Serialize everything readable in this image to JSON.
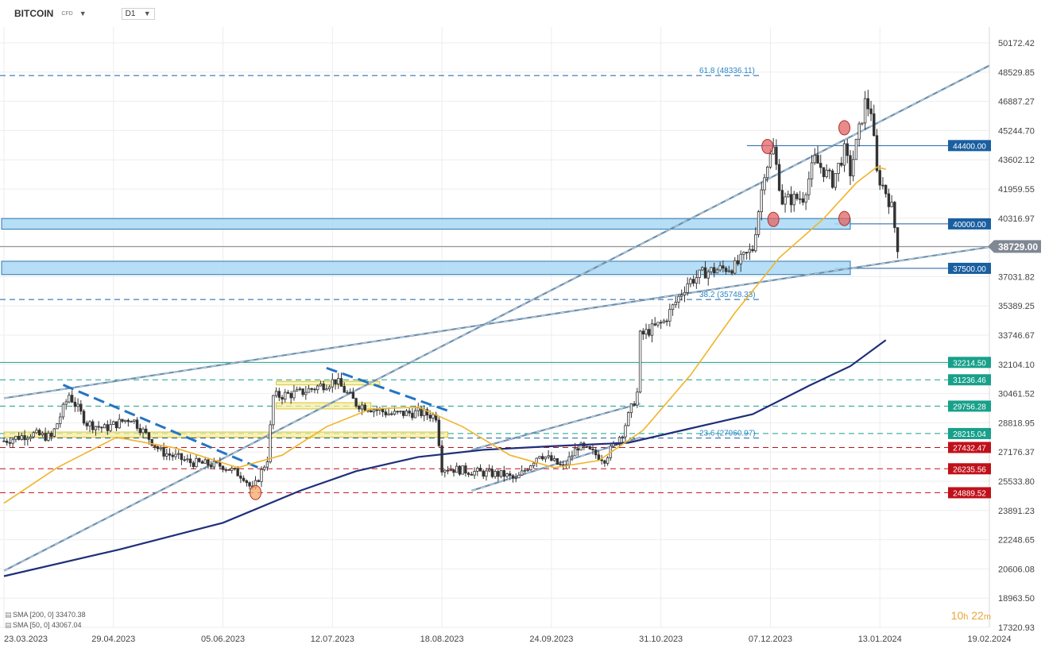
{
  "header": {
    "symbol": "BITCOIN",
    "symbol_type": "CFD",
    "timeframe": "D1"
  },
  "legend": [
    {
      "label": "SMA [200,  0]  33470.38",
      "color": "#1f2f7a"
    },
    {
      "label": "SMA [50,  0]  43067.04",
      "color": "#f0b429"
    }
  ],
  "countdown": {
    "hours": "10",
    "h": "h",
    "minutes": "22",
    "m": "m"
  },
  "chart_data": {
    "type": "candlestick",
    "instrument": "BITCOIN",
    "timeframe": "D1",
    "last_price": "38729.00",
    "y_ticks": [
      "50172.42",
      "48529.85",
      "46887.27",
      "45244.70",
      "43602.12",
      "41959.55",
      "40316.97",
      "38674.40",
      "37031.82",
      "35389.25",
      "33746.67",
      "32104.10",
      "30461.52",
      "28818.95",
      "27176.37",
      "25533.80",
      "23891.23",
      "22248.65",
      "20606.08",
      "18963.50",
      "17320.93"
    ],
    "x_ticks": [
      "23.03.2023",
      "29.04.2023",
      "05.06.2023",
      "12.07.2023",
      "18.08.2023",
      "24.09.2023",
      "31.10.2023",
      "07.12.2023",
      "13.01.2024",
      "19.02.2024"
    ],
    "x_range": [
      "2023-03-23",
      "2024-02-19"
    ],
    "y_range": [
      17320.93,
      50172.42
    ],
    "price_labels": [
      {
        "text": "44400.00",
        "value": 44400,
        "color": "#1a5fa0"
      },
      {
        "text": "40000.00",
        "value": 40000,
        "color": "#1a5fa0"
      },
      {
        "text": "37500.00",
        "value": 37500,
        "color": "#1a5fa0"
      },
      {
        "text": "32214.50",
        "value": 32214.5,
        "color": "#18a08a"
      },
      {
        "text": "31236.46",
        "value": 31236.46,
        "color": "#18a08a"
      },
      {
        "text": "29756.28",
        "value": 29756.28,
        "color": "#18a08a"
      },
      {
        "text": "28215.04",
        "value": 28215.04,
        "color": "#18a08a"
      },
      {
        "text": "27432.47",
        "value": 27432.47,
        "color": "#c0101a"
      },
      {
        "text": "26235.56",
        "value": 26235.56,
        "color": "#c0101a"
      },
      {
        "text": "24889.52",
        "value": 24889.52,
        "color": "#c0101a"
      }
    ],
    "fib_levels": [
      {
        "text": "61.8 (48336.11)",
        "value": 48336.11
      },
      {
        "text": "38.2 (35748.33)",
        "value": 35748.33
      },
      {
        "text": "23.6 (27960.97)",
        "value": 27960.97
      }
    ],
    "zones": [
      {
        "low": 39700,
        "high": 40300,
        "start": "2023-03-23",
        "end": "2024-01-03"
      },
      {
        "low": 37150,
        "high": 37900,
        "start": "2023-03-23",
        "end": "2024-01-03"
      }
    ],
    "series": [
      {
        "name": "SMA [200,  0]",
        "color": "#1f2f7a",
        "points": [
          [
            "2023-03-23",
            20200
          ],
          [
            "2023-05-01",
            21700
          ],
          [
            "2023-06-05",
            23200
          ],
          [
            "2023-07-01",
            25000
          ],
          [
            "2023-07-20",
            26100
          ],
          [
            "2023-08-10",
            26900
          ],
          [
            "2023-09-01",
            27300
          ],
          [
            "2023-09-24",
            27500
          ],
          [
            "2023-10-20",
            27700
          ],
          [
            "2023-11-10",
            28500
          ],
          [
            "2023-12-01",
            29300
          ],
          [
            "2023-12-20",
            30900
          ],
          [
            "2024-01-03",
            32000
          ],
          [
            "2024-01-15",
            33470
          ]
        ]
      },
      {
        "name": "SMA [50,  0]",
        "color": "#f0b429",
        "points": [
          [
            "2023-03-23",
            24300
          ],
          [
            "2023-04-10",
            26300
          ],
          [
            "2023-04-30",
            28000
          ],
          [
            "2023-05-20",
            27400
          ],
          [
            "2023-06-10",
            26300
          ],
          [
            "2023-06-25",
            27000
          ],
          [
            "2023-07-10",
            28600
          ],
          [
            "2023-07-25",
            29600
          ],
          [
            "2023-08-10",
            29700
          ],
          [
            "2023-08-25",
            28600
          ],
          [
            "2023-09-10",
            27000
          ],
          [
            "2023-09-25",
            26300
          ],
          [
            "2023-10-10",
            26700
          ],
          [
            "2023-10-25",
            28400
          ],
          [
            "2023-11-10",
            31500
          ],
          [
            "2023-11-25",
            35000
          ],
          [
            "2023-12-10",
            38100
          ],
          [
            "2023-12-25",
            40300
          ],
          [
            "2024-01-05",
            42300
          ],
          [
            "2024-01-12",
            43200
          ],
          [
            "2024-01-15",
            43067
          ]
        ]
      },
      {
        "name": "price",
        "color": "#3c3c3c",
        "points": [
          [
            "2023-03-23",
            27800
          ],
          [
            "2023-04-01",
            28200
          ],
          [
            "2023-04-08",
            28000
          ],
          [
            "2023-04-14",
            30400
          ],
          [
            "2023-04-20",
            28800
          ],
          [
            "2023-04-26",
            28500
          ],
          [
            "2023-05-05",
            29100
          ],
          [
            "2023-05-15",
            27200
          ],
          [
            "2023-05-25",
            26600
          ],
          [
            "2023-06-05",
            26400
          ],
          [
            "2023-06-12",
            25800
          ],
          [
            "2023-06-15",
            25000
          ],
          [
            "2023-06-20",
            26800
          ],
          [
            "2023-06-22",
            30300
          ],
          [
            "2023-07-01",
            30500
          ],
          [
            "2023-07-13",
            31200
          ],
          [
            "2023-07-20",
            29900
          ],
          [
            "2023-08-01",
            29300
          ],
          [
            "2023-08-10",
            29400
          ],
          [
            "2023-08-16",
            29200
          ],
          [
            "2023-08-18",
            26300
          ],
          [
            "2023-09-01",
            26000
          ],
          [
            "2023-09-08",
            25900
          ],
          [
            "2023-09-12",
            25600
          ],
          [
            "2023-09-20",
            27100
          ],
          [
            "2023-09-28",
            26300
          ],
          [
            "2023-10-03",
            27500
          ],
          [
            "2023-10-12",
            26800
          ],
          [
            "2023-10-18",
            28300
          ],
          [
            "2023-10-23",
            30500
          ],
          [
            "2023-10-24",
            33700
          ],
          [
            "2023-11-01",
            34500
          ],
          [
            "2023-11-09",
            36700
          ],
          [
            "2023-11-15",
            37300
          ],
          [
            "2023-11-25",
            37600
          ],
          [
            "2023-12-01",
            38600
          ],
          [
            "2023-12-05",
            43000
          ],
          [
            "2023-12-08",
            44200
          ],
          [
            "2023-12-11",
            41300
          ],
          [
            "2023-12-18",
            41500
          ],
          [
            "2023-12-22",
            43600
          ],
          [
            "2023-12-28",
            42400
          ],
          [
            "2024-01-01",
            44100
          ],
          [
            "2024-01-03",
            42900
          ],
          [
            "2024-01-08",
            46800
          ],
          [
            "2024-01-10",
            46400
          ],
          [
            "2024-01-12",
            42800
          ],
          [
            "2024-01-15",
            41800
          ],
          [
            "2024-01-17",
            40900
          ],
          [
            "2024-01-19",
            38729
          ]
        ]
      }
    ],
    "trendlines": [
      {
        "style": "channel",
        "from": [
          "2023-03-23",
          20500
        ],
        "to": [
          "2024-02-19",
          48900
        ]
      },
      {
        "style": "channel",
        "from": [
          "2023-03-23",
          30200
        ],
        "to": [
          "2024-02-19",
          38700
        ]
      },
      {
        "style": "channel",
        "from": [
          "2023-08-28",
          25000
        ],
        "to": [
          "2023-10-24",
          28000
        ]
      },
      {
        "style": "channel",
        "from": [
          "2023-08-28",
          27300
        ],
        "to": [
          "2023-10-24",
          29900
        ]
      },
      {
        "style": "dash",
        "from": [
          "2023-04-12",
          30950
        ],
        "to": [
          "2023-06-17",
          26300
        ]
      },
      {
        "style": "dash",
        "from": [
          "2023-07-10",
          31900
        ],
        "to": [
          "2023-08-20",
          29500
        ]
      }
    ],
    "highlight_zones": [
      {
        "low": 28000,
        "high": 28300,
        "start": "2023-03-23",
        "end": "2023-08-20"
      },
      {
        "low": 29600,
        "high": 29950,
        "start": "2023-06-23",
        "end": "2023-07-25"
      },
      {
        "low": 30950,
        "high": 31150,
        "start": "2023-06-23",
        "end": "2023-07-28"
      }
    ],
    "markers": [
      {
        "date": "2023-06-16",
        "value": 24900,
        "color": "#f4a868"
      },
      {
        "date": "2023-12-06",
        "value": 44350,
        "color": "#e26464"
      },
      {
        "date": "2023-12-08",
        "value": 40250,
        "color": "#e26464"
      },
      {
        "date": "2024-01-01",
        "value": 45400,
        "color": "#e26464"
      },
      {
        "date": "2024-01-01",
        "value": 40300,
        "color": "#e26464"
      }
    ]
  }
}
